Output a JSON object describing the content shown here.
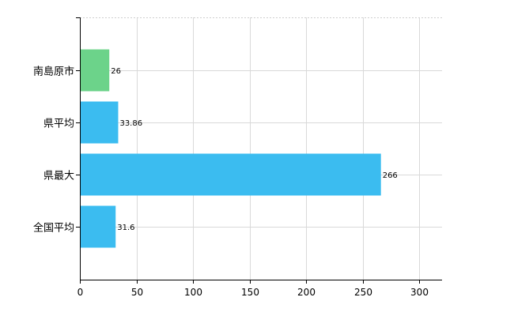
{
  "chart_data": {
    "type": "bar",
    "orientation": "horizontal",
    "categories": [
      "南島原市",
      "県平均",
      "県最大",
      "全国平均"
    ],
    "values": [
      26,
      33.86,
      266,
      31.6
    ],
    "data_labels": [
      "26",
      "33.86",
      "266",
      "31.6"
    ],
    "bar_colors": [
      "#6cd38a",
      "#3bbcf0",
      "#3bbcf0",
      "#3bbcf0"
    ],
    "xlim": [
      0,
      320
    ],
    "x_ticks": [
      0,
      50,
      100,
      150,
      200,
      250,
      300
    ],
    "x_tick_labels": [
      "0",
      "50",
      "100",
      "150",
      "200",
      "250",
      "300"
    ],
    "grid": true,
    "legend": "none"
  }
}
